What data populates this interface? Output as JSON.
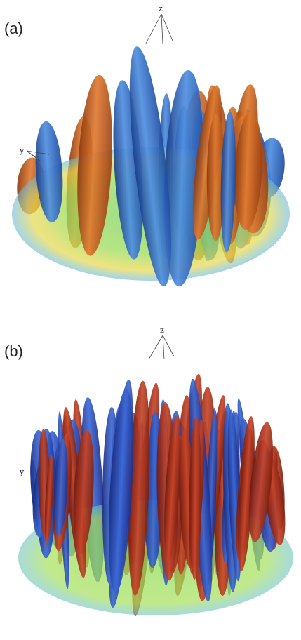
{
  "panels": [
    {
      "label": "(a)",
      "axis_labels": {
        "z": "z",
        "y": "y"
      }
    },
    {
      "label": "(b)",
      "axis_labels": {
        "z": "z",
        "y": "y"
      }
    }
  ]
}
